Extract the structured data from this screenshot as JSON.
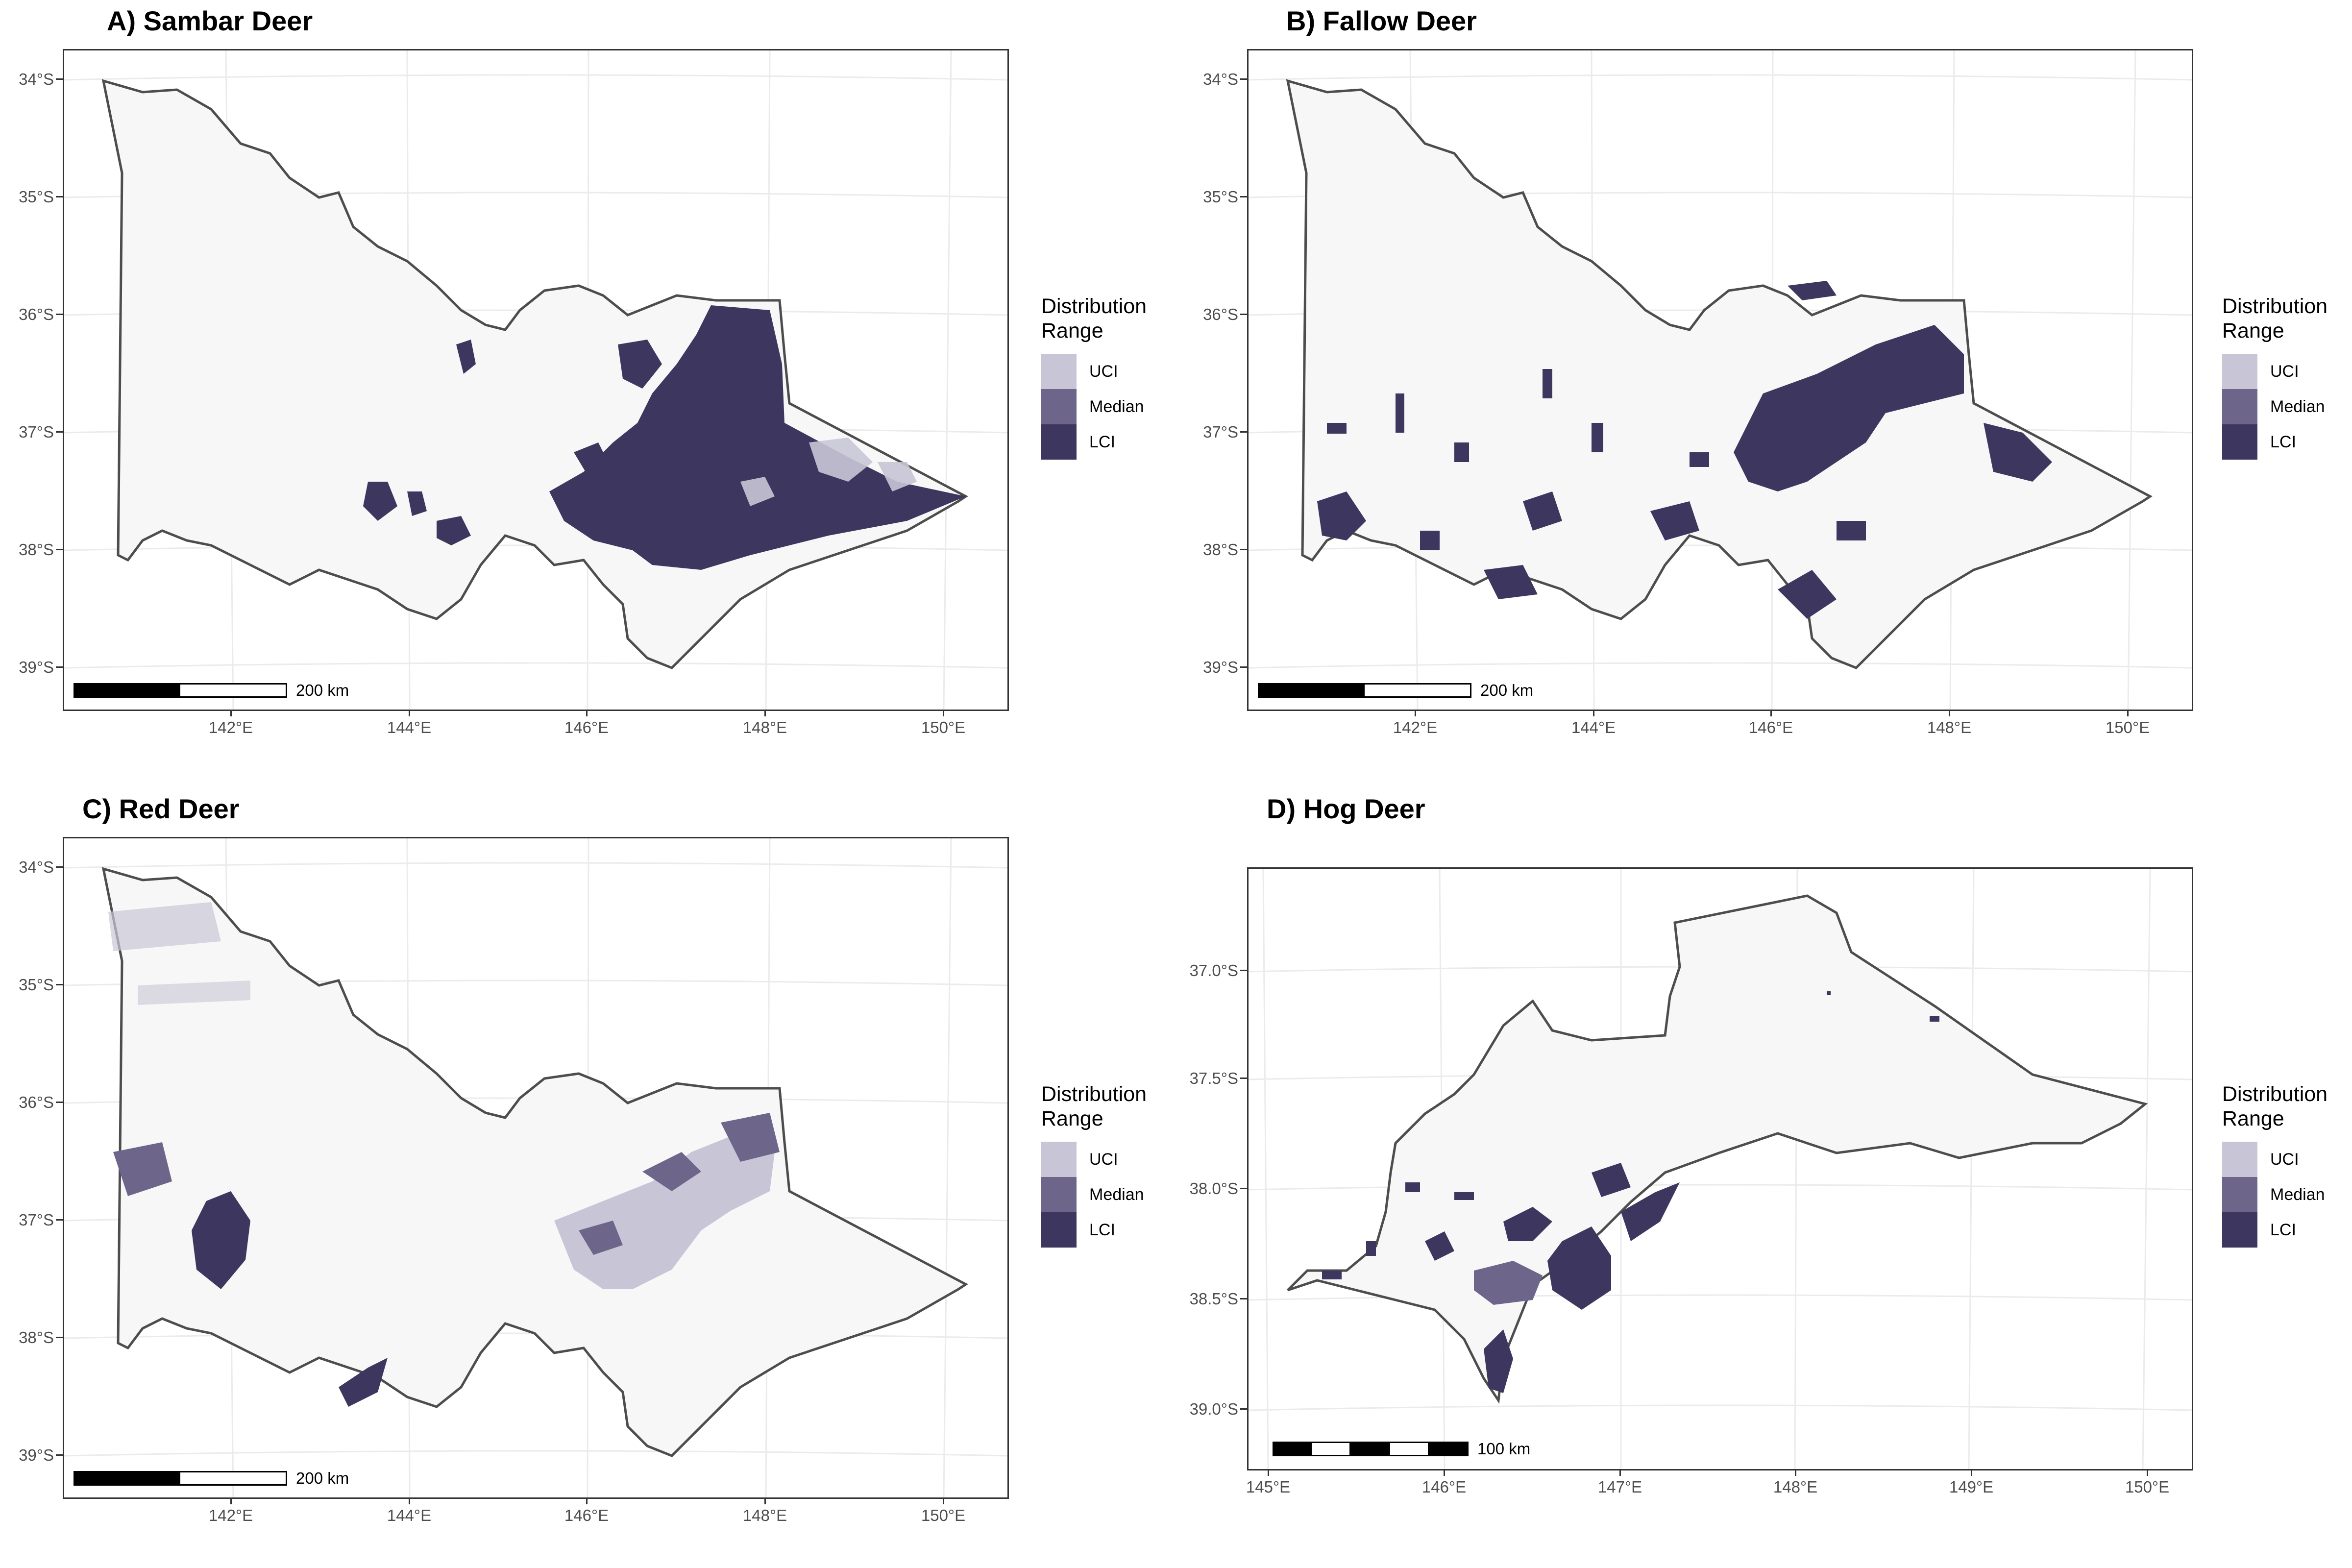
{
  "colors": {
    "uci": "#c8c6d6",
    "median": "#6e668a",
    "lci": "#3d365e",
    "land": "#f7f7f7",
    "border": "#4d4d4d",
    "grid": "#ebebeb"
  },
  "legend": {
    "title_line1": "Distribution",
    "title_line2": "Range",
    "items": [
      "UCI",
      "Median",
      "LCI"
    ]
  },
  "panels": [
    {
      "title": "A) Sambar Deer",
      "y_ticks": [
        "34°S",
        "35°S",
        "36°S",
        "37°S",
        "38°S",
        "39°S"
      ],
      "x_ticks": [
        "142°E",
        "144°E",
        "146°E",
        "148°E",
        "150°E"
      ],
      "scale_label": "200 km"
    },
    {
      "title": "B) Fallow Deer",
      "y_ticks": [
        "34°S",
        "35°S",
        "36°S",
        "37°S",
        "38°S",
        "39°S"
      ],
      "x_ticks": [
        "142°E",
        "144°E",
        "146°E",
        "148°E",
        "150°E"
      ],
      "scale_label": "200 km"
    },
    {
      "title": "C) Red Deer",
      "y_ticks": [
        "34°S",
        "35°S",
        "36°S",
        "37°S",
        "38°S",
        "39°S"
      ],
      "x_ticks": [
        "142°E",
        "144°E",
        "146°E",
        "148°E",
        "150°E"
      ],
      "scale_label": "200 km"
    },
    {
      "title": "D) Hog Deer",
      "y_ticks": [
        "37.0°S",
        "37.5°S",
        "38.0°S",
        "38.5°S",
        "39.0°S"
      ],
      "x_ticks": [
        "145°E",
        "146°E",
        "147°E",
        "148°E",
        "149°E",
        "150°E"
      ],
      "scale_label": "100 km"
    }
  ]
}
